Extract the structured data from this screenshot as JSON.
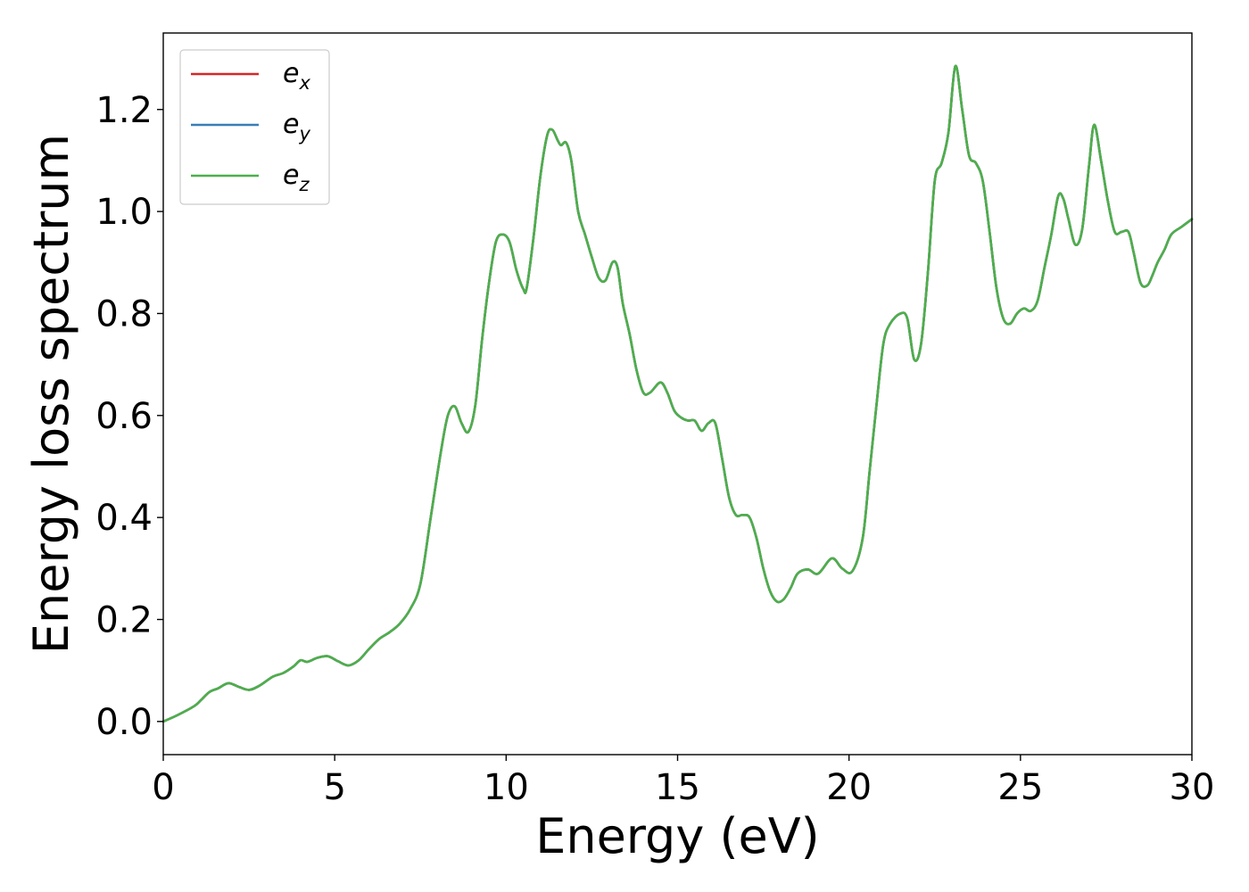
{
  "chart_data": {
    "type": "line",
    "xlabel": "Energy (eV)",
    "ylabel": "Energy loss spectrum",
    "xlim": [
      0,
      30
    ],
    "ylim": [
      -0.065,
      1.35
    ],
    "xticks": [
      0,
      5,
      10,
      15,
      20,
      25,
      30
    ],
    "xtick_labels": [
      "0",
      "5",
      "10",
      "15",
      "20",
      "25",
      "30"
    ],
    "yticks": [
      0.0,
      0.2,
      0.4,
      0.6,
      0.8,
      1.0,
      1.2
    ],
    "ytick_labels": [
      "0.0",
      "0.2",
      "0.4",
      "0.6",
      "0.8",
      "1.0",
      "1.2"
    ],
    "grid": false,
    "legend_position": "upper-left",
    "x": [
      0,
      0.4,
      0.9,
      1.1,
      1.35,
      1.6,
      1.9,
      2.2,
      2.5,
      2.8,
      3.2,
      3.5,
      3.8,
      4.0,
      4.2,
      4.5,
      4.8,
      5.1,
      5.4,
      5.7,
      6.0,
      6.3,
      6.6,
      6.9,
      7.2,
      7.5,
      7.8,
      8.1,
      8.3,
      8.5,
      8.7,
      8.9,
      9.1,
      9.3,
      9.5,
      9.7,
      9.9,
      10.1,
      10.3,
      10.5,
      10.6,
      10.8,
      11.0,
      11.2,
      11.35,
      11.5,
      11.6,
      11.75,
      11.9,
      12.1,
      12.3,
      12.5,
      12.7,
      12.9,
      13.1,
      13.25,
      13.4,
      13.6,
      13.8,
      14.0,
      14.2,
      14.5,
      14.7,
      14.9,
      15.1,
      15.3,
      15.5,
      15.7,
      15.9,
      16.1,
      16.3,
      16.5,
      16.7,
      16.9,
      17.1,
      17.3,
      17.5,
      17.7,
      17.9,
      18.1,
      18.3,
      18.5,
      18.8,
      19.1,
      19.5,
      19.8,
      20.1,
      20.4,
      20.6,
      20.8,
      21.0,
      21.2,
      21.5,
      21.7,
      21.9,
      22.1,
      22.3,
      22.5,
      22.7,
      22.9,
      23.1,
      23.3,
      23.5,
      23.7,
      23.9,
      24.1,
      24.3,
      24.5,
      24.7,
      24.9,
      25.1,
      25.3,
      25.5,
      25.7,
      25.9,
      26.1,
      26.25,
      26.4,
      26.6,
      26.8,
      27.0,
      27.15,
      27.35,
      27.55,
      27.75,
      27.95,
      28.15,
      28.3,
      28.5,
      28.7,
      28.85,
      29.0,
      29.2,
      29.4,
      29.7,
      30.0
    ],
    "series": [
      {
        "name": "e_x",
        "color": "#d62728",
        "values": [
          0.0,
          0.012,
          0.03,
          0.042,
          0.058,
          0.065,
          0.075,
          0.068,
          0.062,
          0.07,
          0.088,
          0.095,
          0.108,
          0.12,
          0.117,
          0.125,
          0.128,
          0.118,
          0.11,
          0.12,
          0.142,
          0.162,
          0.175,
          0.192,
          0.22,
          0.27,
          0.4,
          0.53,
          0.6,
          0.618,
          0.585,
          0.568,
          0.62,
          0.75,
          0.86,
          0.94,
          0.955,
          0.94,
          0.885,
          0.848,
          0.85,
          0.95,
          1.07,
          1.15,
          1.16,
          1.14,
          1.13,
          1.135,
          1.1,
          1.0,
          0.955,
          0.91,
          0.87,
          0.865,
          0.9,
          0.89,
          0.82,
          0.76,
          0.69,
          0.645,
          0.645,
          0.665,
          0.645,
          0.61,
          0.596,
          0.59,
          0.59,
          0.57,
          0.585,
          0.585,
          0.515,
          0.44,
          0.405,
          0.405,
          0.4,
          0.36,
          0.3,
          0.255,
          0.235,
          0.24,
          0.262,
          0.29,
          0.298,
          0.29,
          0.32,
          0.3,
          0.295,
          0.36,
          0.49,
          0.62,
          0.74,
          0.78,
          0.8,
          0.79,
          0.71,
          0.74,
          0.88,
          1.06,
          1.095,
          1.155,
          1.285,
          1.2,
          1.11,
          1.095,
          1.06,
          0.96,
          0.85,
          0.79,
          0.78,
          0.8,
          0.81,
          0.805,
          0.825,
          0.89,
          0.955,
          1.03,
          1.025,
          0.985,
          0.935,
          0.965,
          1.09,
          1.17,
          1.1,
          1.02,
          0.96,
          0.96,
          0.96,
          0.92,
          0.86,
          0.855,
          0.875,
          0.9,
          0.925,
          0.955,
          0.97,
          0.985
        ]
      },
      {
        "name": "e_y",
        "color": "#377eb8",
        "values": [
          0.0,
          0.012,
          0.03,
          0.042,
          0.058,
          0.065,
          0.075,
          0.068,
          0.062,
          0.07,
          0.088,
          0.095,
          0.108,
          0.12,
          0.117,
          0.125,
          0.128,
          0.118,
          0.11,
          0.12,
          0.142,
          0.162,
          0.175,
          0.192,
          0.22,
          0.27,
          0.4,
          0.53,
          0.6,
          0.618,
          0.585,
          0.568,
          0.62,
          0.75,
          0.86,
          0.94,
          0.955,
          0.94,
          0.885,
          0.848,
          0.85,
          0.95,
          1.07,
          1.15,
          1.16,
          1.14,
          1.13,
          1.135,
          1.1,
          1.0,
          0.955,
          0.91,
          0.87,
          0.865,
          0.9,
          0.89,
          0.82,
          0.76,
          0.69,
          0.645,
          0.645,
          0.665,
          0.645,
          0.61,
          0.596,
          0.59,
          0.59,
          0.57,
          0.585,
          0.585,
          0.515,
          0.44,
          0.405,
          0.405,
          0.4,
          0.36,
          0.3,
          0.255,
          0.235,
          0.24,
          0.262,
          0.29,
          0.298,
          0.29,
          0.32,
          0.3,
          0.295,
          0.36,
          0.49,
          0.62,
          0.74,
          0.78,
          0.8,
          0.79,
          0.71,
          0.74,
          0.88,
          1.06,
          1.095,
          1.155,
          1.285,
          1.2,
          1.11,
          1.095,
          1.06,
          0.96,
          0.85,
          0.79,
          0.78,
          0.8,
          0.81,
          0.805,
          0.825,
          0.89,
          0.955,
          1.03,
          1.025,
          0.985,
          0.935,
          0.965,
          1.09,
          1.17,
          1.1,
          1.02,
          0.96,
          0.96,
          0.96,
          0.92,
          0.86,
          0.855,
          0.875,
          0.9,
          0.925,
          0.955,
          0.97,
          0.985
        ]
      },
      {
        "name": "e_z",
        "color": "#4daf4a",
        "values": [
          0.0,
          0.012,
          0.03,
          0.042,
          0.058,
          0.065,
          0.075,
          0.068,
          0.062,
          0.07,
          0.088,
          0.095,
          0.108,
          0.12,
          0.117,
          0.125,
          0.128,
          0.118,
          0.11,
          0.12,
          0.142,
          0.162,
          0.175,
          0.192,
          0.22,
          0.27,
          0.4,
          0.53,
          0.6,
          0.618,
          0.585,
          0.568,
          0.62,
          0.75,
          0.86,
          0.94,
          0.955,
          0.94,
          0.885,
          0.848,
          0.85,
          0.95,
          1.07,
          1.15,
          1.16,
          1.14,
          1.13,
          1.135,
          1.1,
          1.0,
          0.955,
          0.91,
          0.87,
          0.865,
          0.9,
          0.89,
          0.82,
          0.76,
          0.69,
          0.645,
          0.645,
          0.665,
          0.645,
          0.61,
          0.596,
          0.59,
          0.59,
          0.57,
          0.585,
          0.585,
          0.515,
          0.44,
          0.405,
          0.405,
          0.4,
          0.36,
          0.3,
          0.255,
          0.235,
          0.24,
          0.262,
          0.29,
          0.298,
          0.29,
          0.32,
          0.3,
          0.295,
          0.36,
          0.49,
          0.62,
          0.74,
          0.78,
          0.8,
          0.79,
          0.71,
          0.74,
          0.88,
          1.06,
          1.095,
          1.155,
          1.285,
          1.2,
          1.11,
          1.095,
          1.06,
          0.96,
          0.85,
          0.79,
          0.78,
          0.8,
          0.81,
          0.805,
          0.825,
          0.89,
          0.955,
          1.03,
          1.025,
          0.985,
          0.935,
          0.965,
          1.09,
          1.17,
          1.1,
          1.02,
          0.96,
          0.96,
          0.96,
          0.92,
          0.86,
          0.855,
          0.875,
          0.9,
          0.925,
          0.955,
          0.97,
          0.985
        ]
      }
    ],
    "legend": [
      {
        "base": "e",
        "sub": "x",
        "color": "#d62728"
      },
      {
        "base": "e",
        "sub": "y",
        "color": "#377eb8"
      },
      {
        "base": "e",
        "sub": "z",
        "color": "#4daf4a"
      }
    ]
  }
}
